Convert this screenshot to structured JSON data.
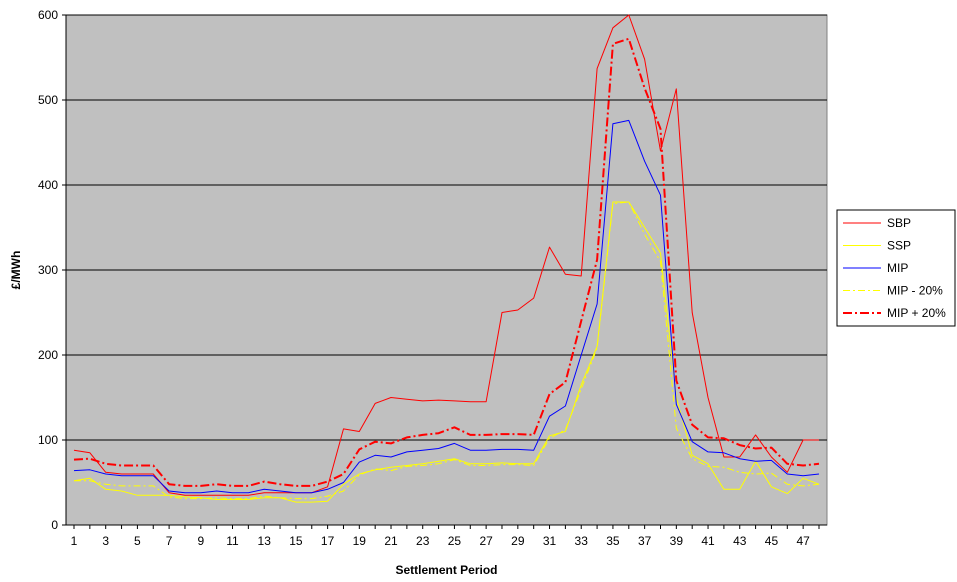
{
  "chart_data": {
    "type": "line",
    "title": "",
    "xlabel": "Settlement Period",
    "ylabel": "£/MWh",
    "xlim": [
      1,
      48
    ],
    "ylim": [
      0,
      600
    ],
    "yticks": [
      0,
      100,
      200,
      300,
      400,
      500,
      600
    ],
    "xtick_labels": [
      "1",
      "3",
      "5",
      "7",
      "9",
      "11",
      "13",
      "15",
      "17",
      "19",
      "21",
      "23",
      "25",
      "27",
      "29",
      "31",
      "33",
      "35",
      "37",
      "39",
      "41",
      "43",
      "45",
      "47"
    ],
    "grid": "horizontal",
    "legend_position": "right",
    "plot_background": "#c0c0c0",
    "x": [
      1,
      2,
      3,
      4,
      5,
      6,
      7,
      8,
      9,
      10,
      11,
      12,
      13,
      14,
      15,
      16,
      17,
      18,
      19,
      20,
      21,
      22,
      23,
      24,
      25,
      26,
      27,
      28,
      29,
      30,
      31,
      32,
      33,
      34,
      35,
      36,
      37,
      38,
      39,
      40,
      41,
      42,
      43,
      44,
      45,
      46,
      47,
      48
    ],
    "series": [
      {
        "name": "SBP",
        "color": "#ff0000",
        "style": "solid",
        "width": 1,
        "values": [
          88,
          85,
          62,
          60,
          60,
          60,
          38,
          35,
          35,
          35,
          35,
          35,
          38,
          38,
          38,
          38,
          45,
          113,
          110,
          143,
          150,
          148,
          146,
          147,
          146,
          145,
          145,
          250,
          253,
          267,
          327,
          295,
          293,
          537,
          585,
          600,
          548,
          440,
          513,
          250,
          150,
          80,
          80,
          106,
          80,
          62,
          100,
          100
        ]
      },
      {
        "name": "SSP",
        "color": "#ffff00",
        "style": "solid",
        "width": 1,
        "values": [
          52,
          55,
          42,
          40,
          35,
          35,
          35,
          33,
          32,
          30,
          30,
          30,
          32,
          32,
          27,
          27,
          28,
          48,
          60,
          65,
          68,
          70,
          72,
          75,
          78,
          72,
          72,
          73,
          72,
          72,
          105,
          110,
          165,
          210,
          380,
          380,
          350,
          320,
          150,
          82,
          72,
          42,
          42,
          75,
          45,
          37,
          55,
          48
        ]
      },
      {
        "name": "MIP",
        "color": "#0000ff",
        "style": "solid",
        "width": 1,
        "values": [
          64,
          65,
          60,
          58,
          58,
          58,
          40,
          38,
          38,
          40,
          38,
          38,
          42,
          40,
          38,
          38,
          42,
          50,
          74,
          82,
          80,
          86,
          88,
          90,
          96,
          88,
          88,
          89,
          89,
          88,
          128,
          140,
          200,
          260,
          472,
          476,
          428,
          388,
          142,
          98,
          86,
          85,
          78,
          75,
          76,
          60,
          58,
          60
        ]
      },
      {
        "name": "MIP - 20%",
        "color": "#ffff00",
        "style": "dashdot",
        "width": 1,
        "values": [
          52,
          52,
          48,
          46,
          46,
          46,
          33,
          31,
          31,
          32,
          31,
          31,
          34,
          32,
          31,
          31,
          34,
          40,
          59,
          66,
          64,
          69,
          70,
          72,
          77,
          70,
          70,
          71,
          71,
          70,
          102,
          112,
          160,
          208,
          378,
          380,
          342,
          310,
          114,
          78,
          69,
          68,
          62,
          60,
          61,
          48,
          46,
          48
        ]
      },
      {
        "name": "MIP + 20%",
        "color": "#ff0000",
        "style": "dashdot",
        "width": 2,
        "values": [
          77,
          78,
          72,
          70,
          70,
          70,
          48,
          46,
          46,
          48,
          46,
          46,
          51,
          48,
          46,
          46,
          51,
          60,
          89,
          98,
          96,
          103,
          106,
          108,
          115,
          106,
          106,
          107,
          107,
          106,
          154,
          168,
          240,
          312,
          566,
          572,
          514,
          466,
          170,
          118,
          103,
          102,
          94,
          90,
          91,
          72,
          70,
          72
        ]
      }
    ]
  }
}
